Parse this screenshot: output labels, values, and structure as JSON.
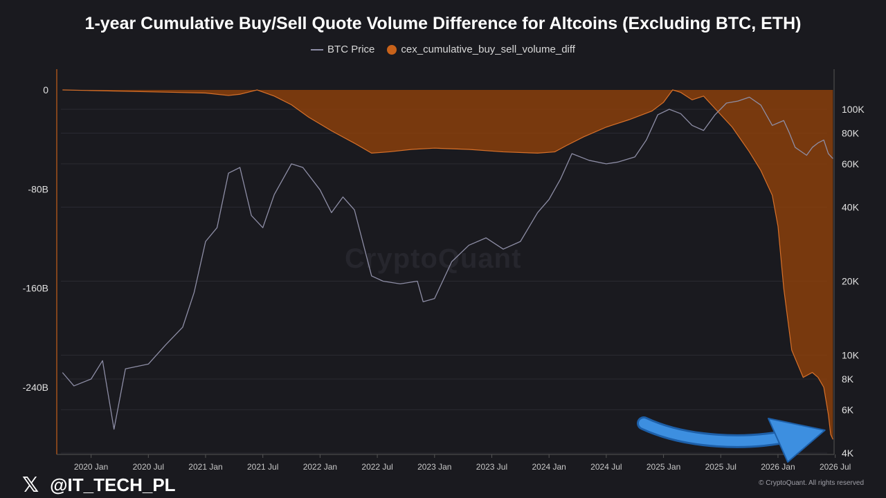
{
  "title": "1-year Cumulative Buy/Sell Quote Volume Difference for Altcoins (Excluding BTC, ETH)",
  "legend": {
    "btc": "BTC Price",
    "volume": "cex_cumulative_buy_sell_volume_diff"
  },
  "watermark": "CryptoQuant",
  "footer": {
    "x_icon": "x-logo-icon",
    "handle": "@IT_TECH_PL",
    "copyright": "© CryptoQuant. All rights reserved"
  },
  "colors": {
    "area_fill": "#8a3f0c",
    "area_line": "#d8712a",
    "btc_line": "#8e8ea6",
    "arrow": "#3d8fe0",
    "left_axis": "#c8621a"
  },
  "chart_data": {
    "type": "area",
    "left_axis": {
      "ticks": [
        "0",
        "-80B",
        "-160B",
        "-240B"
      ],
      "tick_values": [
        0,
        -80,
        -160,
        -240
      ],
      "unit": "B",
      "range": [
        -282,
        0
      ]
    },
    "right_axis": {
      "scale": "log",
      "ticks": [
        "100K",
        "80K",
        "60K",
        "40K",
        "20K",
        "10K",
        "8K",
        "6K",
        "4K"
      ],
      "tick_values": [
        100000,
        80000,
        60000,
        40000,
        20000,
        10000,
        8000,
        6000,
        4000
      ],
      "range": [
        4000,
        150000
      ]
    },
    "x_ticks": [
      "2020 Jan",
      "2020 Jul",
      "2021 Jan",
      "2021 Jul",
      "2022 Jan",
      "2022 Jul",
      "2023 Jan",
      "2023 Jul",
      "2024 Jan",
      "2024 Jul",
      "2025 Jan",
      "2025 Jul",
      "2026 Jan",
      "2026 Jul"
    ],
    "x_tick_years": [
      2020.0,
      2020.5,
      2021.0,
      2021.5,
      2022.0,
      2022.5,
      2023.0,
      2023.5,
      2024.0,
      2024.5,
      2025.0,
      2025.5,
      2026.0,
      2026.5
    ],
    "x_range": [
      2019.7,
      2026.49
    ],
    "series": [
      {
        "name": "cex_cumulative_buy_sell_volume_diff",
        "unit": "B",
        "x": [
          2019.75,
          2020.0,
          2020.5,
          2021.0,
          2021.2,
          2021.3,
          2021.45,
          2021.6,
          2021.75,
          2021.9,
          2022.1,
          2022.3,
          2022.45,
          2022.6,
          2022.8,
          2023.0,
          2023.3,
          2023.6,
          2023.9,
          2024.05,
          2024.15,
          2024.3,
          2024.5,
          2024.7,
          2024.9,
          2025.0,
          2025.08,
          2025.15,
          2025.25,
          2025.35,
          2025.45,
          2025.6,
          2025.75,
          2025.85,
          2025.95,
          2026.0,
          2026.05,
          2026.12,
          2026.22,
          2026.3,
          2026.35,
          2026.4,
          2026.44,
          2026.46,
          2026.48
        ],
        "values": [
          0,
          -0.5,
          -1.5,
          -2.5,
          -4.5,
          -3.5,
          0,
          -5,
          -12,
          -22,
          -33,
          -43,
          -51,
          -50,
          -48,
          -47,
          -48,
          -50,
          -51,
          -50,
          -45,
          -38,
          -30,
          -24,
          -17,
          -10,
          0,
          -2,
          -8,
          -5,
          -15,
          -30,
          -50,
          -65,
          -85,
          -110,
          -160,
          -210,
          -232,
          -228,
          -232,
          -240,
          -262,
          -278,
          -282
        ]
      },
      {
        "name": "BTC Price",
        "unit": "USD",
        "x": [
          2019.75,
          2019.85,
          2020.0,
          2020.1,
          2020.2,
          2020.3,
          2020.5,
          2020.65,
          2020.8,
          2020.9,
          2021.0,
          2021.1,
          2021.2,
          2021.3,
          2021.4,
          2021.5,
          2021.6,
          2021.75,
          2021.85,
          2022.0,
          2022.1,
          2022.2,
          2022.3,
          2022.45,
          2022.55,
          2022.7,
          2022.85,
          2022.9,
          2023.0,
          2023.15,
          2023.3,
          2023.45,
          2023.6,
          2023.75,
          2023.9,
          2024.0,
          2024.1,
          2024.2,
          2024.35,
          2024.5,
          2024.6,
          2024.75,
          2024.85,
          2024.95,
          2025.05,
          2025.15,
          2025.25,
          2025.35,
          2025.45,
          2025.55,
          2025.65,
          2025.75,
          2025.85,
          2025.95,
          2026.0,
          2026.05,
          2026.1,
          2026.15,
          2026.25,
          2026.3,
          2026.35,
          2026.4,
          2026.44,
          2026.48
        ],
        "values": [
          8500,
          7500,
          8000,
          9500,
          5000,
          8800,
          9200,
          11000,
          13000,
          18000,
          29000,
          33000,
          55000,
          58000,
          37000,
          33000,
          45000,
          60000,
          58000,
          47000,
          38000,
          44000,
          39000,
          21000,
          20000,
          19500,
          20000,
          16500,
          17000,
          24000,
          28000,
          30000,
          27000,
          29000,
          38000,
          43000,
          52000,
          66000,
          62000,
          60000,
          61000,
          64000,
          75000,
          95000,
          100000,
          96000,
          86000,
          82000,
          95000,
          106000,
          108000,
          112000,
          104000,
          86000,
          88000,
          90000,
          80000,
          70000,
          65000,
          70000,
          73000,
          75000,
          66000,
          63000
        ]
      }
    ],
    "annotation": {
      "type": "arrow",
      "target_x": 2026.47,
      "color": "#3d8fe0"
    }
  }
}
